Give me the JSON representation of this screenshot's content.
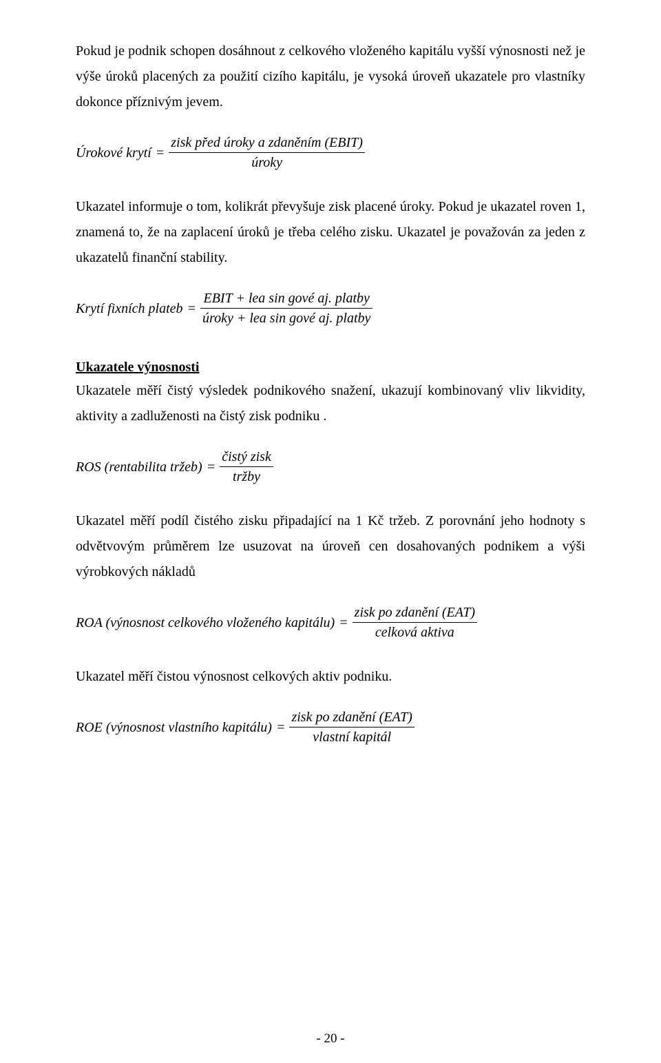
{
  "p1": "Pokud je podnik schopen dosáhnout z celkového vloženého kapitálu vyšší výnosnosti než je výše úroků placených za použití cizího kapitálu, je vysoká úroveň ukazatele pro vlastníky dokonce příznivým jevem.",
  "f1": {
    "lhs": "Úrokové krytí",
    "num": "zisk před úroky a zdaněním (EBIT)",
    "den": "úroky"
  },
  "p2": "Ukazatel informuje o tom, kolikrát převyšuje zisk placené úroky. Pokud je ukazatel roven 1, znamená to, že na zaplacení úroků je třeba celého zisku. Ukazatel je považován za jeden z ukazatelů finanční stability.",
  "f2": {
    "lhs": "Krytí fixních plateb",
    "num": "EBIT + lea sin gové aj. platby",
    "den": "úroky + lea sin gové aj. platby"
  },
  "heading1": "Ukazatele výnosnosti",
  "p3": "Ukazatele měří čistý výsledek podnikového snažení, ukazují kombinovaný vliv likvidity, aktivity a zadluženosti na čistý zisk podniku .",
  "f3": {
    "lhs": "ROS (rentabilita tržeb)",
    "num": "čistý zisk",
    "den": "tržby"
  },
  "p4": "Ukazatel měří podíl čistého zisku připadající na 1 Kč tržeb. Z porovnání jeho hodnoty s odvětvovým průměrem lze usuzovat na úroveň cen dosahovaných podnikem a výši výrobkových nákladů",
  "f4": {
    "lhs": "ROA (výnosnost celkového vloženého kapitálu)",
    "num": "zisk po zdanění (EAT)",
    "den": "celková aktiva"
  },
  "p5": "Ukazatel měří čistou výnosnost celkových aktiv podniku.",
  "f5": {
    "lhs": "ROE (výnosnost vlastního kapitálu)",
    "num": "zisk po zdanění (EAT)",
    "den": "vlastní kapitál"
  },
  "pagenum": "- 20 -",
  "eq": "="
}
